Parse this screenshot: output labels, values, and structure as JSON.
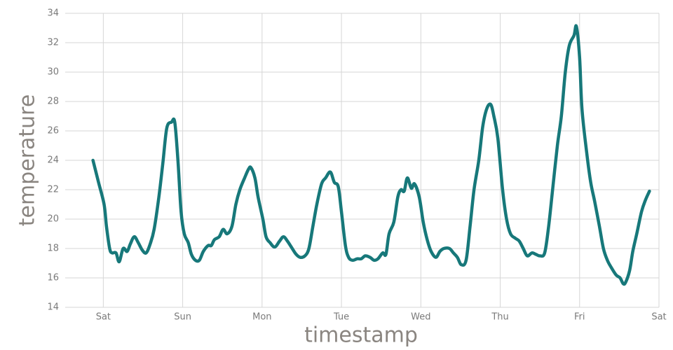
{
  "chart_data": {
    "type": "line",
    "x_label": "timestamp",
    "y_label": "temperature",
    "grid": true,
    "xlim": [
      -0.48,
      7.0
    ],
    "ylim": [
      14,
      34
    ],
    "xticks": [
      {
        "value": 0,
        "label": "Sat"
      },
      {
        "value": 1,
        "label": "Sun"
      },
      {
        "value": 2,
        "label": "Mon"
      },
      {
        "value": 3,
        "label": "Tue"
      },
      {
        "value": 4,
        "label": "Wed"
      },
      {
        "value": 5,
        "label": "Thu"
      },
      {
        "value": 6,
        "label": "Fri"
      },
      {
        "value": 7,
        "label": "Sat"
      }
    ],
    "yticks": [
      14,
      16,
      18,
      20,
      22,
      24,
      26,
      28,
      30,
      32,
      34
    ],
    "series": [
      {
        "color": "#17787a",
        "x": [
          -0.13,
          -0.06,
          0.01,
          0.04,
          0.08,
          0.11,
          0.16,
          0.2,
          0.25,
          0.3,
          0.34,
          0.39,
          0.44,
          0.49,
          0.54,
          0.59,
          0.64,
          0.7,
          0.75,
          0.8,
          0.86,
          0.9,
          0.94,
          0.98,
          1.02,
          1.07,
          1.11,
          1.16,
          1.21,
          1.26,
          1.32,
          1.36,
          1.4,
          1.46,
          1.51,
          1.56,
          1.62,
          1.67,
          1.72,
          1.78,
          1.83,
          1.86,
          1.91,
          1.95,
          2.01,
          2.05,
          2.1,
          2.16,
          2.22,
          2.27,
          2.32,
          2.38,
          2.43,
          2.48,
          2.54,
          2.59,
          2.64,
          2.69,
          2.75,
          2.8,
          2.86,
          2.91,
          2.96,
          3.0,
          3.05,
          3.09,
          3.14,
          3.2,
          3.25,
          3.3,
          3.36,
          3.41,
          3.46,
          3.52,
          3.56,
          3.6,
          3.66,
          3.71,
          3.75,
          3.79,
          3.83,
          3.88,
          3.92,
          3.98,
          4.03,
          4.08,
          4.13,
          4.19,
          4.24,
          4.29,
          4.36,
          4.41,
          4.46,
          4.51,
          4.57,
          4.62,
          4.67,
          4.73,
          4.78,
          4.83,
          4.88,
          4.92,
          4.97,
          5.03,
          5.08,
          5.13,
          5.19,
          5.24,
          5.29,
          5.34,
          5.4,
          5.45,
          5.5,
          5.56,
          5.61,
          5.66,
          5.72,
          5.77,
          5.82,
          5.87,
          5.93,
          5.96,
          6.0,
          6.03,
          6.09,
          6.14,
          6.19,
          6.25,
          6.3,
          6.35,
          6.4,
          6.46,
          6.51,
          6.55,
          6.58,
          6.63,
          6.67,
          6.72,
          6.78,
          6.83,
          6.88
        ],
        "values": [
          24.0,
          22.5,
          21.0,
          19.5,
          18.0,
          17.7,
          17.7,
          17.1,
          18.0,
          17.8,
          18.3,
          18.8,
          18.4,
          17.9,
          17.7,
          18.3,
          19.3,
          21.5,
          23.8,
          26.2,
          26.6,
          26.6,
          24.0,
          20.5,
          19.0,
          18.4,
          17.6,
          17.2,
          17.2,
          17.8,
          18.2,
          18.2,
          18.6,
          18.8,
          19.3,
          19.0,
          19.5,
          21.0,
          22.0,
          22.8,
          23.4,
          23.5,
          22.8,
          21.5,
          20.0,
          18.8,
          18.4,
          18.1,
          18.5,
          18.8,
          18.5,
          18.0,
          17.6,
          17.4,
          17.5,
          18.0,
          19.5,
          21.0,
          22.4,
          22.8,
          23.2,
          22.5,
          22.2,
          20.5,
          18.2,
          17.4,
          17.2,
          17.3,
          17.3,
          17.5,
          17.4,
          17.2,
          17.3,
          17.7,
          17.6,
          19.0,
          19.8,
          21.5,
          22.0,
          21.9,
          22.8,
          22.1,
          22.4,
          21.5,
          19.8,
          18.6,
          17.8,
          17.4,
          17.8,
          18.0,
          18.0,
          17.7,
          17.4,
          16.9,
          17.2,
          19.5,
          22.0,
          24.0,
          26.3,
          27.5,
          27.8,
          27.0,
          25.5,
          22.0,
          20.0,
          19.0,
          18.7,
          18.5,
          18.0,
          17.5,
          17.7,
          17.6,
          17.5,
          17.7,
          19.5,
          22.0,
          25.0,
          27.0,
          30.0,
          31.8,
          32.5,
          33.1,
          31.0,
          27.5,
          24.5,
          22.5,
          21.2,
          19.5,
          18.0,
          17.2,
          16.7,
          16.2,
          16.0,
          15.6,
          15.7,
          16.5,
          17.8,
          19.0,
          20.5,
          21.3,
          21.9
        ]
      }
    ]
  }
}
